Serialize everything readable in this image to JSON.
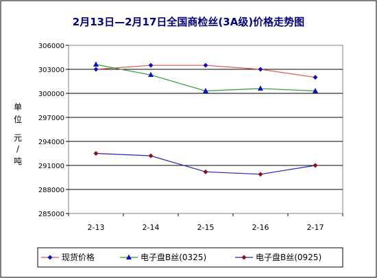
{
  "chart_data": {
    "type": "line",
    "title": "2月13日—2月17日全国商检丝(3A级)价格走势图",
    "ylabel": "单位 元/吨",
    "ylabel_chars": [
      "单",
      "位",
      "元",
      "/",
      "吨"
    ],
    "categories": [
      "2-13",
      "2-14",
      "2-15",
      "2-16",
      "2-17"
    ],
    "ylim": [
      285000,
      306000
    ],
    "yticks": [
      "285000",
      "288000",
      "291000",
      "294000",
      "297000",
      "300000",
      "303000",
      "306000"
    ],
    "grid": "horizontal",
    "legend_position": "bottom",
    "series": [
      {
        "name": "现货价格",
        "values": [
          303000,
          303500,
          303500,
          303000,
          302000
        ],
        "color": "#e05050",
        "marker_color": "#1010c0",
        "marker": "diamond"
      },
      {
        "name": "电子盘B丝(0325)",
        "values": [
          303600,
          302300,
          300300,
          300600,
          300300
        ],
        "color": "#2e9e2e",
        "marker_color": "#1010c0",
        "marker": "triangle"
      },
      {
        "name": "电子盘B丝(0925)",
        "values": [
          292500,
          292200,
          290200,
          289900,
          291000
        ],
        "color": "#2020c0",
        "marker_color": "#8b1010",
        "marker": "diamond"
      }
    ]
  }
}
